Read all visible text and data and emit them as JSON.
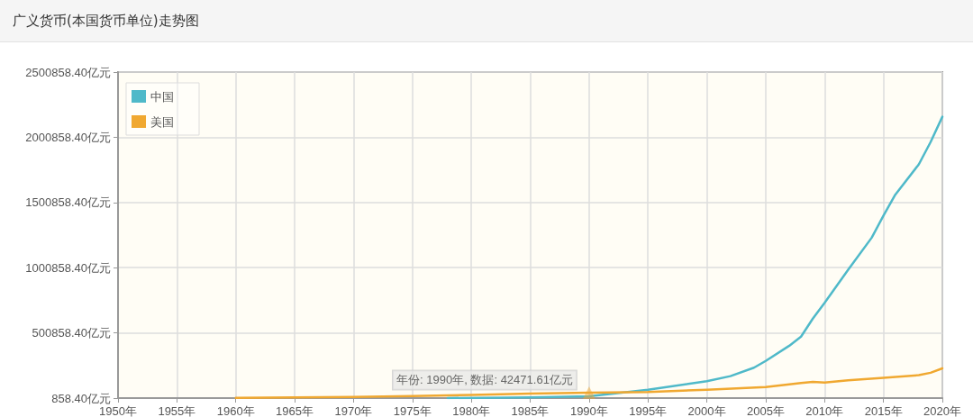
{
  "chart_data": {
    "type": "line",
    "title": "广义货币(本国货币单位)走势图",
    "xlim": [
      1950,
      2020
    ],
    "xticks": [
      {
        "value": 1950,
        "label": "1950年"
      },
      {
        "value": 1955,
        "label": "1955年"
      },
      {
        "value": 1960,
        "label": "1960年"
      },
      {
        "value": 1965,
        "label": "1965年"
      },
      {
        "value": 1970,
        "label": "1970年"
      },
      {
        "value": 1975,
        "label": "1975年"
      },
      {
        "value": 1980,
        "label": "1980年"
      },
      {
        "value": 1985,
        "label": "1985年"
      },
      {
        "value": 1990,
        "label": "1990年"
      },
      {
        "value": 1995,
        "label": "1995年"
      },
      {
        "value": 2000,
        "label": "2000年"
      },
      {
        "value": 2005,
        "label": "2005年"
      },
      {
        "value": 2010,
        "label": "2010年"
      },
      {
        "value": 2015,
        "label": "2015年"
      },
      {
        "value": 2020,
        "label": "2020年"
      }
    ],
    "ylim": [
      858.4,
      2500858.4
    ],
    "yticks": [
      {
        "value": 858.4,
        "label": "858.40亿元"
      },
      {
        "value": 500858.4,
        "label": "500858.40亿元"
      },
      {
        "value": 1000858.4,
        "label": "1000858.40亿元"
      },
      {
        "value": 1500858.4,
        "label": "1500858.40亿元"
      },
      {
        "value": 2000858.4,
        "label": "2000858.40亿元"
      },
      {
        "value": 2500858.4,
        "label": "2500858.40亿元"
      }
    ],
    "series": [
      {
        "name": "中国",
        "color": "#4fb9c9",
        "x": [
          1978,
          1985,
          1990,
          1995,
          2000,
          2002,
          2004,
          2005,
          2007,
          2008,
          2009,
          2010,
          2012,
          2014,
          2015,
          2016,
          2018,
          2019,
          2020
        ],
        "values": [
          1200,
          5200,
          15000,
          65000,
          130000,
          169000,
          234000,
          286000,
          402000,
          472000,
          610000,
          731000,
          985000,
          1231000,
          1400000,
          1560000,
          1793000,
          1964000,
          2158000
        ]
      },
      {
        "name": "美国",
        "color": "#f0a830",
        "x": [
          1960,
          1965,
          1970,
          1975,
          1980,
          1985,
          1990,
          1995,
          2000,
          2005,
          2008,
          2009,
          2010,
          2012,
          2015,
          2018,
          2019,
          2020
        ],
        "values": [
          3000,
          6000,
          10000,
          16000,
          25000,
          35000,
          42471.61,
          48000,
          65000,
          86000,
          117000,
          125000,
          120000,
          138000,
          156000,
          177000,
          195000,
          229000
        ]
      }
    ],
    "annotations": [
      {
        "text": "年份: 1990年, 数据: 42471.61亿元",
        "x": 1990,
        "y": 42471.61
      }
    ],
    "grid": true,
    "legend": "top left",
    "marker": "none",
    "line_style": "solid"
  }
}
